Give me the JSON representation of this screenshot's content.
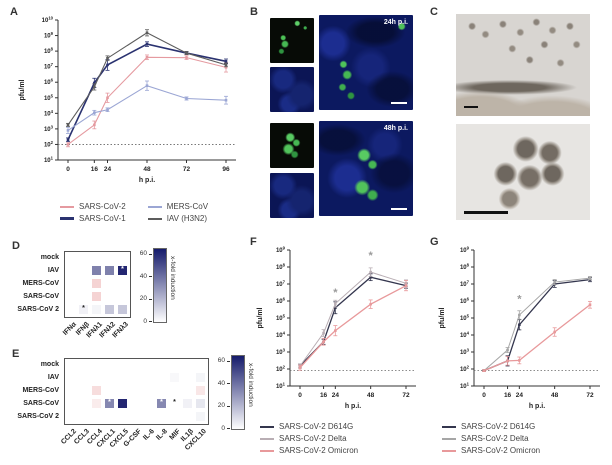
{
  "panels": {
    "a": {
      "label": "A"
    },
    "b": {
      "label": "B",
      "timepoints": [
        {
          "label": "24h p.i."
        },
        {
          "label": "48h p.i."
        }
      ]
    },
    "c": {
      "label": "C"
    },
    "d": {
      "label": "D"
    },
    "e": {
      "label": "E"
    },
    "f": {
      "label": "F"
    },
    "g": {
      "label": "G"
    }
  },
  "chart_data": [
    {
      "id": "A",
      "type": "line",
      "title": "",
      "xlabel": "h p.i.",
      "ylabel": "pfu/ml",
      "log_y": true,
      "ylim_exp": [
        1,
        10
      ],
      "x": [
        0,
        16,
        24,
        48,
        72,
        96
      ],
      "detection_limit": 100,
      "grid": false,
      "legend_position": "bottom-two-columns",
      "series": [
        {
          "name": "SARS-CoV-2",
          "color": "#e59aa0",
          "width": 1.1,
          "values": [
            100,
            1800,
            100000,
            40000000,
            38000000,
            9000000
          ],
          "err_log10": [
            0.15,
            0.25,
            0.3,
            0.15,
            0.12,
            0.3
          ]
        },
        {
          "name": "SARS-CoV-1",
          "color": "#2a3270",
          "width": 1.6,
          "values": [
            200,
            900000,
            13000000,
            280000000,
            75000000,
            22000000
          ],
          "err_log10": [
            0.12,
            0.3,
            0.35,
            0.15,
            0.1,
            0.15
          ]
        },
        {
          "name": "MERS-CoV",
          "color": "#9ba6d4",
          "width": 1.1,
          "values": [
            800,
            11000,
            17000,
            600000,
            90000,
            70000
          ],
          "err_log10": [
            0.2,
            0.15,
            0.12,
            0.3,
            0.1,
            0.25
          ]
        },
        {
          "name": "IAV (H3N2)",
          "color": "#5c5c5c",
          "width": 1.1,
          "values": [
            1800,
            500000,
            35000000,
            1500000000,
            75000000,
            13000000
          ],
          "err_log10": [
            0.1,
            0.2,
            0.15,
            0.2,
            0.1,
            0.12
          ]
        }
      ],
      "asterisks": []
    },
    {
      "id": "D",
      "type": "heatmap",
      "rows": [
        "mock",
        "IAV",
        "MERS-CoV",
        "SARS-CoV",
        "SARS-CoV 2"
      ],
      "cols": [
        "IFNα",
        "IFNβ",
        "IFNλ1",
        "IFNλ2",
        "IFNλ3"
      ],
      "values": [
        [
          0,
          0,
          0,
          0,
          0
        ],
        [
          0,
          0,
          36,
          36,
          62
        ],
        [
          0,
          0,
          -9,
          0,
          0
        ],
        [
          0,
          0,
          -9,
          0,
          0
        ],
        [
          0,
          4,
          3,
          16,
          16
        ]
      ],
      "marks": [
        {
          "row": 1,
          "col": 4,
          "glyph": "*",
          "color": "#ffffff"
        },
        {
          "row": 4,
          "col": 1,
          "glyph": "*",
          "color": "#222222"
        }
      ],
      "colorbar": {
        "label": "x-fold induction",
        "ticks": [
          60,
          40,
          20,
          0
        ],
        "max": 65
      }
    },
    {
      "id": "E",
      "type": "heatmap",
      "rows": [
        "mock",
        "IAV",
        "MERS-CoV",
        "SARS-CoV",
        "SARS-CoV 2"
      ],
      "cols": [
        "CCL2",
        "CCL3",
        "CCL4",
        "CXCL1",
        "CXCL5",
        "G-CSF",
        "IL-6",
        "IL-8",
        "MIF",
        "IL1β",
        "CXCL10"
      ],
      "values": [
        [
          0,
          0,
          0,
          0,
          0,
          0,
          0,
          0,
          0,
          0,
          0
        ],
        [
          0,
          0,
          0,
          0,
          0,
          0,
          0,
          0,
          2,
          0,
          3
        ],
        [
          0,
          0,
          -7,
          0,
          0,
          0,
          0,
          0,
          0,
          0,
          -5
        ],
        [
          0,
          0,
          -4,
          34,
          62,
          0,
          0,
          34,
          0,
          4,
          7
        ],
        [
          0,
          0,
          0,
          0,
          0,
          0,
          0,
          0,
          0,
          0,
          3
        ]
      ],
      "marks": [
        {
          "row": 3,
          "col": 3,
          "glyph": "*",
          "color": "#ffffff"
        },
        {
          "row": 3,
          "col": 7,
          "glyph": "*",
          "color": "#ffffff"
        },
        {
          "row": 3,
          "col": 8,
          "glyph": "*",
          "color": "#222222"
        }
      ],
      "colorbar": {
        "label": "x-fold induction",
        "ticks": [
          60,
          40,
          20,
          0
        ],
        "max": 65
      }
    },
    {
      "id": "F",
      "type": "line",
      "title": "",
      "xlabel": "h p.i.",
      "ylabel": "pfu/ml",
      "log_y": true,
      "ylim_exp": [
        1,
        9
      ],
      "x": [
        0,
        16,
        24,
        48,
        72
      ],
      "detection_limit": 80,
      "grid": false,
      "legend_position": "bottom-left",
      "series": [
        {
          "name": "SARS-CoV-2 D614G",
          "color": "#34364e",
          "width": 1.3,
          "values": [
            150,
            4000,
            400000,
            25000000,
            8000000
          ],
          "err_log10": [
            0.12,
            0.15,
            0.35,
            0.2,
            0.15
          ]
        },
        {
          "name": "SARS-CoV-2 Delta",
          "color": "#b9aeb4",
          "width": 1.0,
          "values": [
            150,
            13000,
            700000,
            50000000,
            11000000
          ],
          "err_log10": [
            0.12,
            0.2,
            0.2,
            0.25,
            0.2
          ]
        },
        {
          "name": "SARS-CoV-2 Omicron",
          "color": "#e8999b",
          "width": 1.3,
          "values": [
            120,
            4000,
            18000,
            650000,
            8000000
          ],
          "err_log10": [
            0.15,
            0.2,
            0.3,
            0.25,
            0.3
          ]
        }
      ],
      "asterisks": [
        {
          "x": 24,
          "y": 2000000
        },
        {
          "x": 48,
          "y": 300000000
        }
      ]
    },
    {
      "id": "G",
      "type": "line",
      "title": "",
      "xlabel": "h p.i.",
      "ylabel": "pfu/ml",
      "log_y": true,
      "ylim_exp": [
        1,
        9
      ],
      "x": [
        0,
        16,
        24,
        48,
        72
      ],
      "detection_limit": 80,
      "grid": false,
      "legend_position": "bottom-left",
      "series": [
        {
          "name": "SARS-CoV-2 D614G",
          "color": "#34364e",
          "width": 1.3,
          "values": [
            80,
            300,
            40000,
            10000000,
            18000000
          ],
          "err_log10": [
            0.05,
            0.3,
            0.3,
            0.2,
            0.12
          ]
        },
        {
          "name": "SARS-CoV-2 Delta",
          "color": "#a6a6a6",
          "width": 1.0,
          "values": [
            80,
            1300,
            150000,
            13000000,
            22000000
          ],
          "err_log10": [
            0.05,
            0.15,
            0.25,
            0.15,
            0.1
          ]
        },
        {
          "name": "SARS-CoV-2 Omicron",
          "color": "#e8999b",
          "width": 1.3,
          "values": [
            80,
            300,
            320,
            15000,
            600000
          ],
          "err_log10": [
            0.05,
            0.25,
            0.2,
            0.25,
            0.2
          ]
        }
      ],
      "asterisks": [
        {
          "x": 24,
          "y": 800000
        }
      ]
    }
  ],
  "annotations": {
    "significance_glyph": "*",
    "significance_color": "#9a9a9a"
  }
}
